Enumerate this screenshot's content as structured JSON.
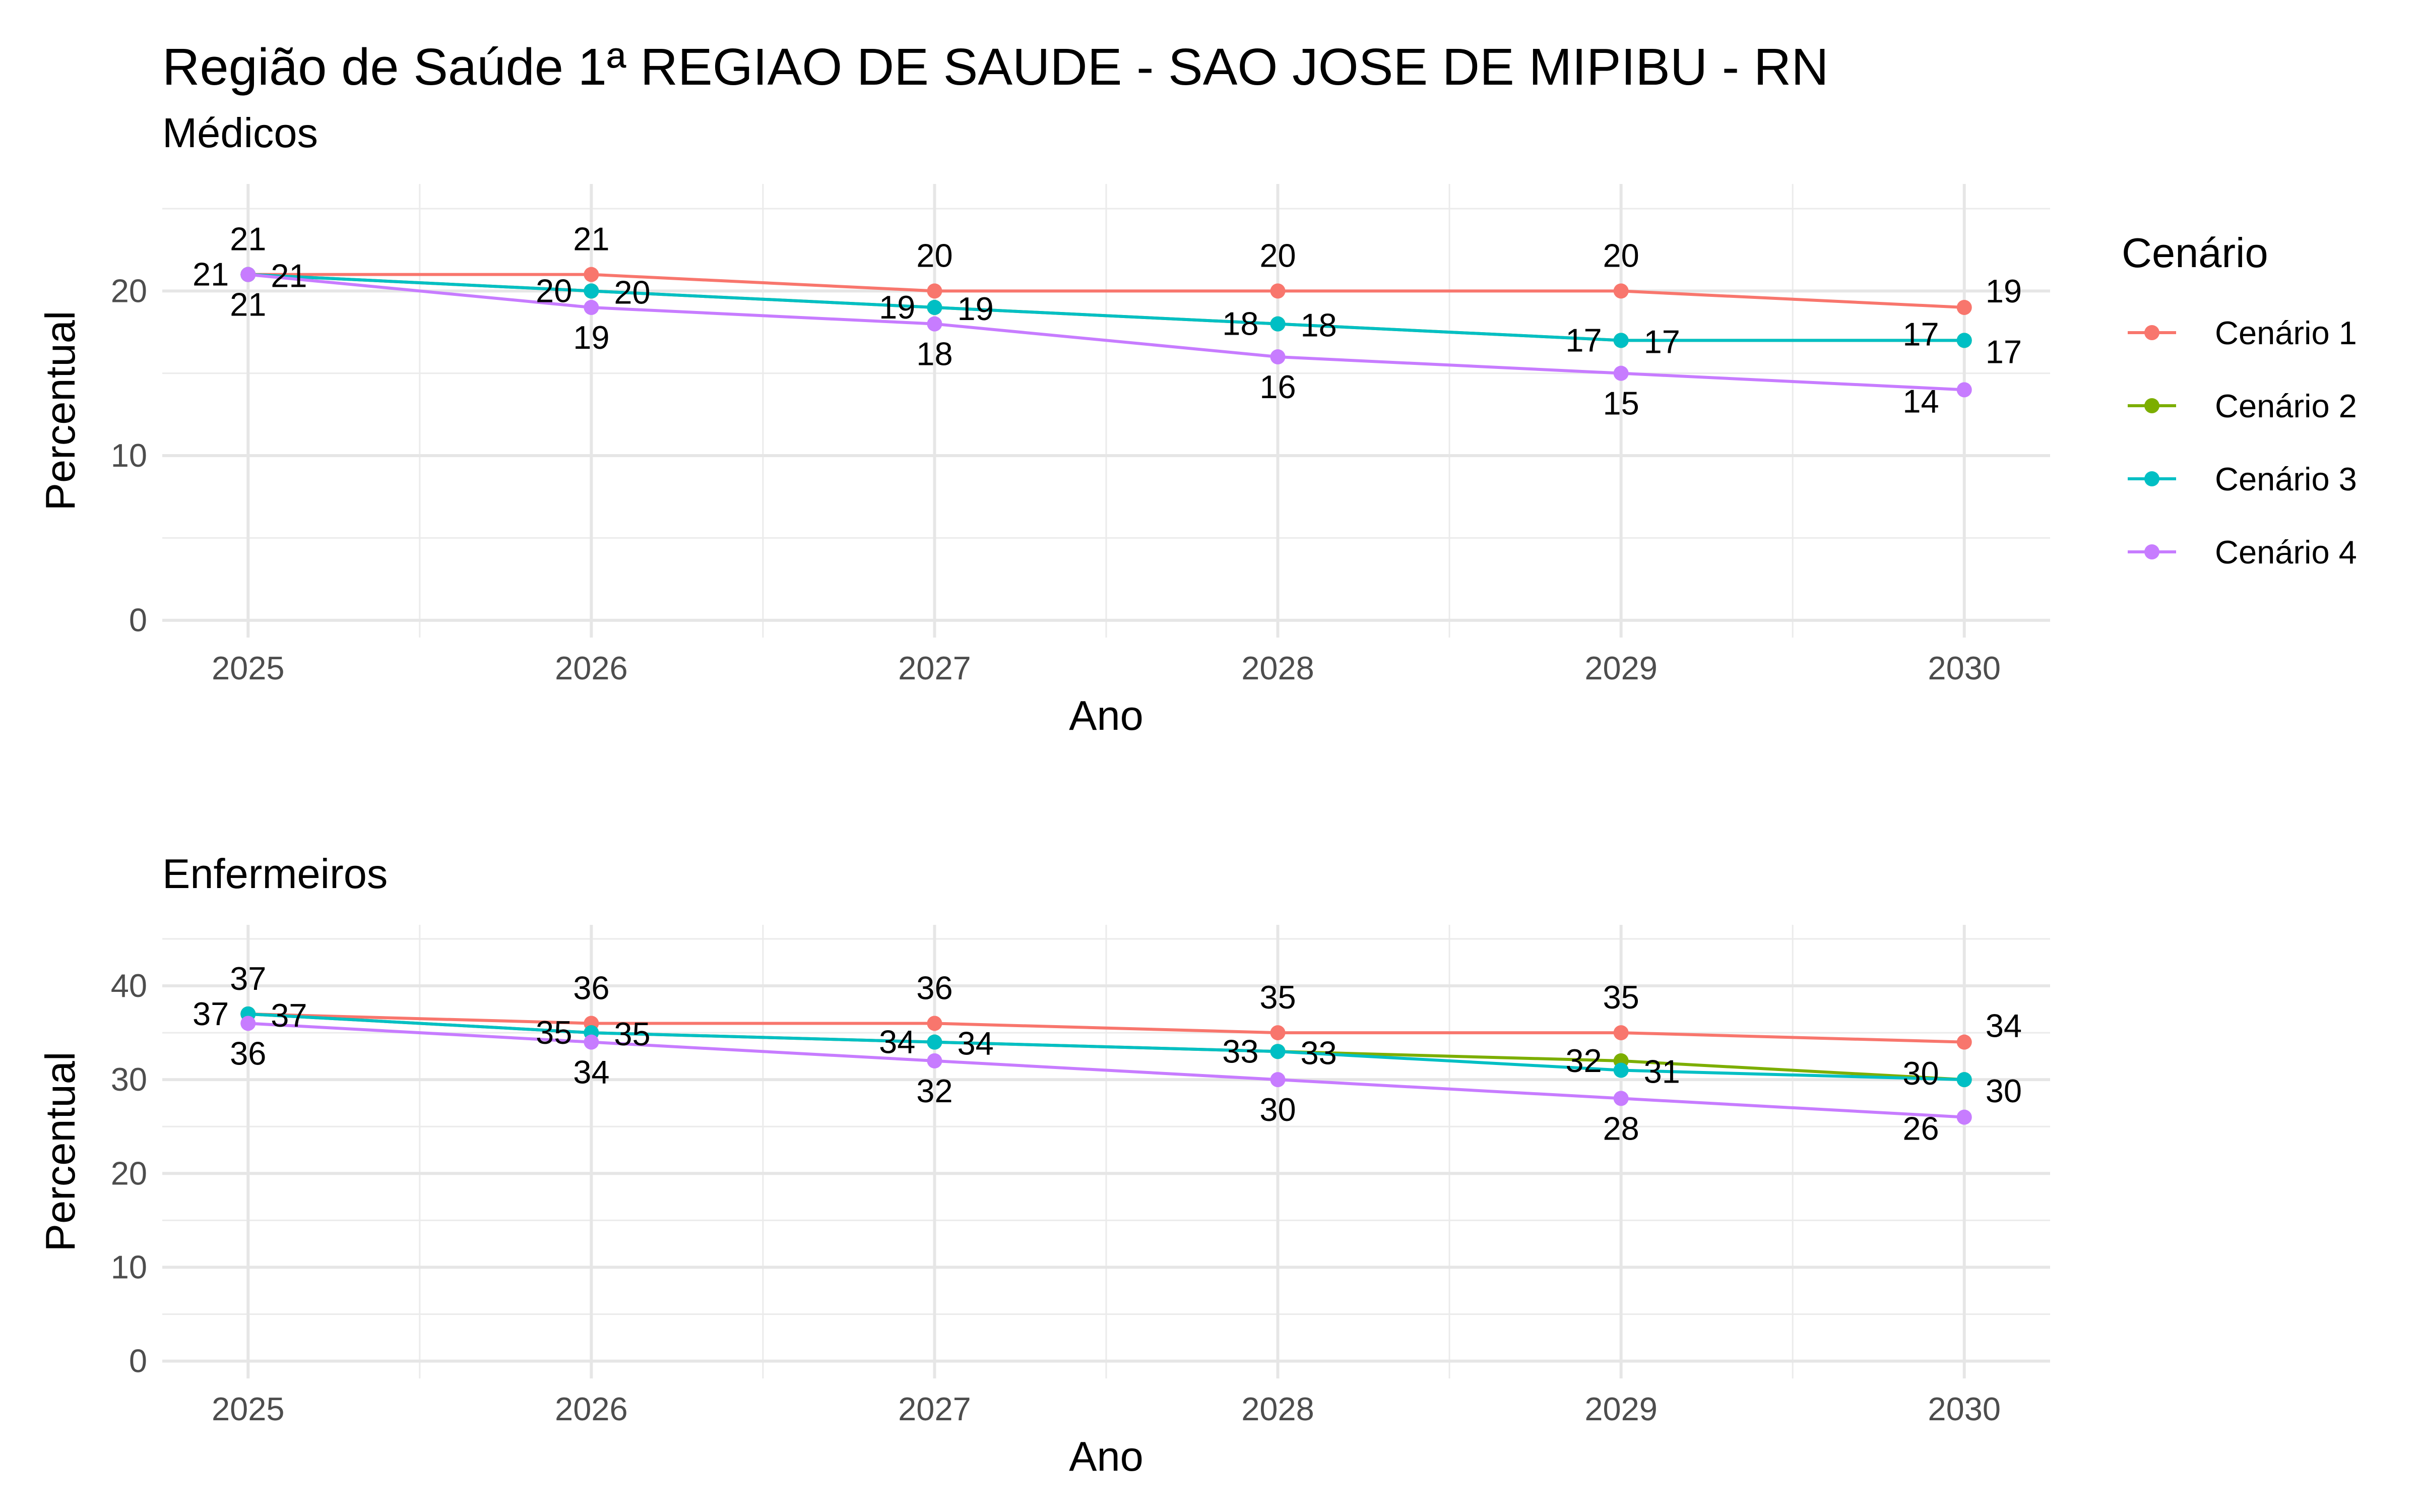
{
  "title": "Região de Saúde 1ª REGIAO DE SAUDE - SAO JOSE DE MIPIBU - RN",
  "legend": {
    "title": "Cenário",
    "placement": "right"
  },
  "chart_data": [
    {
      "type": "line",
      "subtitle": "Médicos",
      "xlabel": "Ano",
      "ylabel": "Percentual",
      "x": [
        2025,
        2026,
        2027,
        2028,
        2029,
        2030
      ],
      "ylim": [
        -1.05,
        26.5
      ],
      "yticks": [
        0,
        10,
        20
      ],
      "grid": true,
      "series": [
        {
          "name": "Cenário 1",
          "color": "#F8766D",
          "values": [
            21,
            21,
            20,
            20,
            20,
            19
          ]
        },
        {
          "name": "Cenário 2",
          "color": "#7CAE00",
          "values": [
            21,
            20,
            19,
            18,
            17,
            17
          ]
        },
        {
          "name": "Cenário 3",
          "color": "#00BFC4",
          "values": [
            21,
            20,
            19,
            18,
            17,
            17
          ]
        },
        {
          "name": "Cenário 4",
          "color": "#C77CFF",
          "values": [
            21,
            19,
            18,
            16,
            15,
            14
          ]
        }
      ]
    },
    {
      "type": "line",
      "subtitle": "Enfermeiros",
      "xlabel": "Ano",
      "ylabel": "Percentual",
      "x": [
        2025,
        2026,
        2027,
        2028,
        2029,
        2030
      ],
      "ylim": [
        -1.85,
        46.5
      ],
      "yticks": [
        0,
        10,
        20,
        30,
        40
      ],
      "grid": true,
      "series": [
        {
          "name": "Cenário 1",
          "color": "#F8766D",
          "values": [
            37,
            36,
            36,
            35,
            35,
            34
          ]
        },
        {
          "name": "Cenário 2",
          "color": "#7CAE00",
          "values": [
            37,
            35,
            34,
            33,
            32,
            30
          ]
        },
        {
          "name": "Cenário 3",
          "color": "#00BFC4",
          "values": [
            37,
            35,
            34,
            33,
            31,
            30
          ]
        },
        {
          "name": "Cenário 4",
          "color": "#C77CFF",
          "values": [
            36,
            34,
            32,
            30,
            28,
            26
          ]
        }
      ]
    }
  ]
}
